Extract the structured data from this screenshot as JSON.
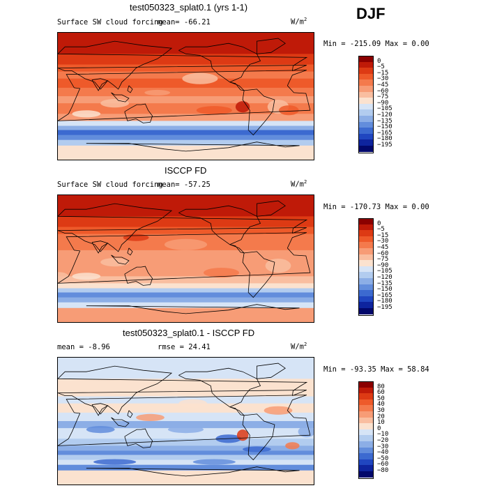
{
  "season": "DJF",
  "panels": [
    {
      "id": "model",
      "title": "test050323_splat0.1 (yrs 1-1)",
      "variable": "Surface SW cloud forcing",
      "mean_text": "mean=  -66.21",
      "units_base": "W/m",
      "units_exp": "2",
      "minmax_text": "Min = -215.09  Max =    0.00"
    },
    {
      "id": "obs",
      "title": "ISCCP FD",
      "variable": "Surface SW cloud forcing",
      "mean_text": "mean=  -57.25",
      "units_base": "W/m",
      "units_exp": "2",
      "minmax_text": "Min = -170.73  Max =    0.00"
    },
    {
      "id": "diff",
      "title": "test050323_splat0.1 - ISCCP FD",
      "mean_text": "mean =    -8.96",
      "rmse_text": "rmse =   24.41",
      "units_base": "W/m",
      "units_exp": "2",
      "minmax_text": "Min =  -93.35  Max =  58.84"
    }
  ],
  "chart_data": [
    {
      "type": "heatmap",
      "title": "test050323_splat0.1 (yrs 1-1)",
      "subtitle": "Surface SW cloud forcing",
      "units": "W/m2",
      "mean": -66.21,
      "min": -215.09,
      "max": 0.0,
      "colorbar_levels": [
        0,
        -5,
        -15,
        -30,
        -45,
        -60,
        -75,
        -90,
        -105,
        -120,
        -135,
        -150,
        -165,
        -180,
        -195
      ],
      "colorbar_colors": [
        "#8b0000",
        "#bf1a08",
        "#dd3a14",
        "#ee5a2a",
        "#f47a4c",
        "#f79c76",
        "#f9bea0",
        "#fbe2cf",
        "#d6e4f6",
        "#b2ccef",
        "#8caee6",
        "#628ddc",
        "#3c6ad0",
        "#2046c0",
        "#0e249e",
        "#02086b"
      ]
    },
    {
      "type": "heatmap",
      "title": "ISCCP FD",
      "subtitle": "Surface SW cloud forcing",
      "units": "W/m2",
      "mean": -57.25,
      "min": -170.73,
      "max": 0.0,
      "colorbar_levels": [
        0,
        -5,
        -15,
        -30,
        -45,
        -60,
        -75,
        -90,
        -105,
        -120,
        -135,
        -150,
        -165,
        -180,
        -195
      ],
      "colorbar_colors": [
        "#8b0000",
        "#bf1a08",
        "#dd3a14",
        "#ee5a2a",
        "#f47a4c",
        "#f79c76",
        "#f9bea0",
        "#fbe2cf",
        "#d6e4f6",
        "#b2ccef",
        "#8caee6",
        "#628ddc",
        "#3c6ad0",
        "#2046c0",
        "#0e249e",
        "#02086b"
      ]
    },
    {
      "type": "heatmap",
      "title": "test050323_splat0.1 - ISCCP FD",
      "units": "W/m2",
      "mean": -8.96,
      "rmse": 24.41,
      "min": -93.35,
      "max": 58.84,
      "colorbar_levels": [
        80,
        60,
        50,
        40,
        30,
        20,
        10,
        0,
        -10,
        -20,
        -30,
        -40,
        -50,
        -60,
        -80
      ],
      "colorbar_colors": [
        "#8b0000",
        "#bf1a08",
        "#dd3a14",
        "#ee5a2a",
        "#f47a4c",
        "#f79c76",
        "#f9bea0",
        "#fbe2cf",
        "#d6e4f6",
        "#b2ccef",
        "#8caee6",
        "#628ddc",
        "#3c6ad0",
        "#2046c0",
        "#0e249e",
        "#02086b"
      ]
    }
  ]
}
